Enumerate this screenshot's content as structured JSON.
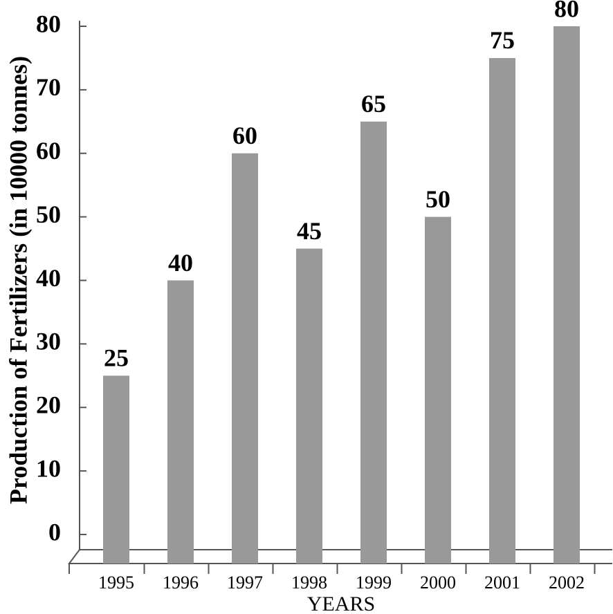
{
  "chart_data": {
    "type": "bar",
    "y_label": "Production of Fertilizers (in 10000 tonnes)",
    "x_label": "YEARS",
    "categories": [
      "1995",
      "1996",
      "1997",
      "1998",
      "1999",
      "2000",
      "2001",
      "2002"
    ],
    "values": [
      25,
      40,
      60,
      45,
      65,
      50,
      75,
      80
    ],
    "color": "#999999",
    "ylim": [
      0,
      80
    ],
    "yticks": [
      0,
      10,
      20,
      30,
      40,
      50,
      60,
      70,
      80
    ],
    "grid": false
  }
}
